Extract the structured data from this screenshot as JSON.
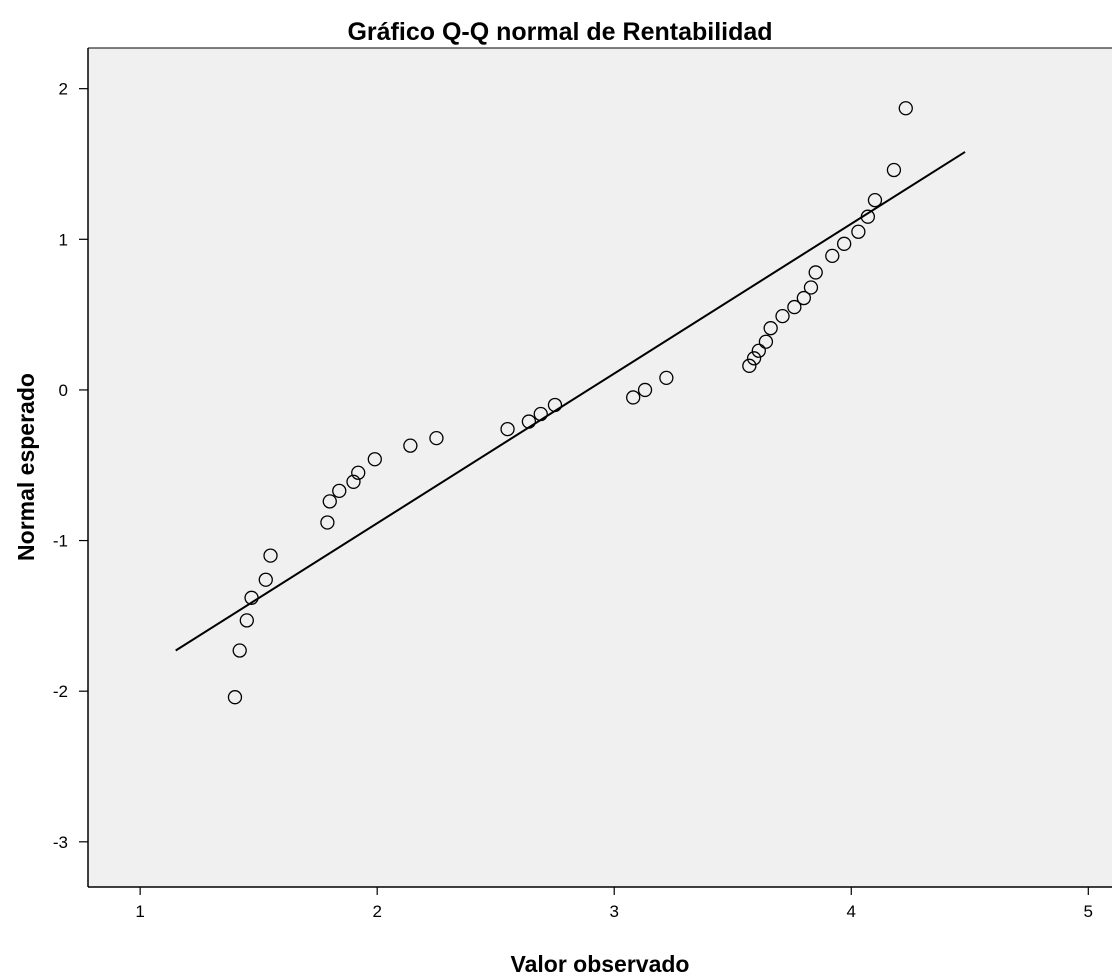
{
  "chart_data": {
    "type": "scatter",
    "title": "Gráfico Q-Q normal de Rentabilidad",
    "xlabel": "Valor observado",
    "ylabel": "Normal esperado",
    "xlim": [
      0.78,
      5.1
    ],
    "ylim": [
      -3.3,
      2.27
    ],
    "xticks": [
      1,
      2,
      3,
      4,
      5
    ],
    "yticks": [
      2,
      1,
      0,
      -1,
      -2,
      -3
    ],
    "xtick_labels": [
      "1",
      "2",
      "3",
      "4",
      "5"
    ],
    "ytick_labels": [
      "2",
      "1",
      "0",
      "-1",
      "-2",
      "-3"
    ],
    "grid": false,
    "legend": "none",
    "colors": {
      "plot_background": "#f0f0f0",
      "marker_stroke": "#000000",
      "line": "#000000"
    },
    "reference_line": {
      "x": [
        1.15,
        4.48
      ],
      "y": [
        -1.73,
        1.58
      ]
    },
    "points": [
      {
        "x": 1.4,
        "y": -2.04
      },
      {
        "x": 1.42,
        "y": -1.73
      },
      {
        "x": 1.45,
        "y": -1.53
      },
      {
        "x": 1.47,
        "y": -1.38
      },
      {
        "x": 1.53,
        "y": -1.26
      },
      {
        "x": 1.55,
        "y": -1.1
      },
      {
        "x": 1.79,
        "y": -0.88
      },
      {
        "x": 1.8,
        "y": -0.74
      },
      {
        "x": 1.84,
        "y": -0.67
      },
      {
        "x": 1.9,
        "y": -0.61
      },
      {
        "x": 1.92,
        "y": -0.55
      },
      {
        "x": 1.99,
        "y": -0.46
      },
      {
        "x": 2.14,
        "y": -0.37
      },
      {
        "x": 2.25,
        "y": -0.32
      },
      {
        "x": 2.55,
        "y": -0.26
      },
      {
        "x": 2.64,
        "y": -0.21
      },
      {
        "x": 2.69,
        "y": -0.16
      },
      {
        "x": 2.75,
        "y": -0.1
      },
      {
        "x": 3.08,
        "y": -0.05
      },
      {
        "x": 3.13,
        "y": 0.0
      },
      {
        "x": 3.22,
        "y": 0.08
      },
      {
        "x": 3.57,
        "y": 0.16
      },
      {
        "x": 3.59,
        "y": 0.21
      },
      {
        "x": 3.61,
        "y": 0.26
      },
      {
        "x": 3.64,
        "y": 0.32
      },
      {
        "x": 3.66,
        "y": 0.41
      },
      {
        "x": 3.71,
        "y": 0.49
      },
      {
        "x": 3.76,
        "y": 0.55
      },
      {
        "x": 3.8,
        "y": 0.61
      },
      {
        "x": 3.83,
        "y": 0.68
      },
      {
        "x": 3.85,
        "y": 0.78
      },
      {
        "x": 3.92,
        "y": 0.89
      },
      {
        "x": 3.97,
        "y": 0.97
      },
      {
        "x": 4.03,
        "y": 1.05
      },
      {
        "x": 4.07,
        "y": 1.15
      },
      {
        "x": 4.1,
        "y": 1.26
      },
      {
        "x": 4.18,
        "y": 1.46
      },
      {
        "x": 4.23,
        "y": 1.87
      }
    ]
  }
}
